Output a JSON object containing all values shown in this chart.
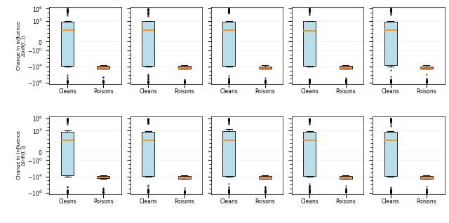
{
  "nrows": 2,
  "ncols": 5,
  "figsize": [
    6.4,
    3.18
  ],
  "dpi": 100,
  "ylabel": "Change in Influence\nΔInfl(ī, j̅)",
  "xtick_labels": [
    "Cleans",
    "Poisons"
  ],
  "cleans_color": "#add8e6",
  "poisons_color": "#e08080",
  "median_color": "#ff8c00",
  "box_width": 0.35,
  "linthresh": 0.1,
  "ylim_lo": -200000000.0,
  "ylim_hi": 3000000.0,
  "ytick_vals": [
    -100000000,
    -10000,
    -1,
    0,
    1000,
    1000000
  ]
}
